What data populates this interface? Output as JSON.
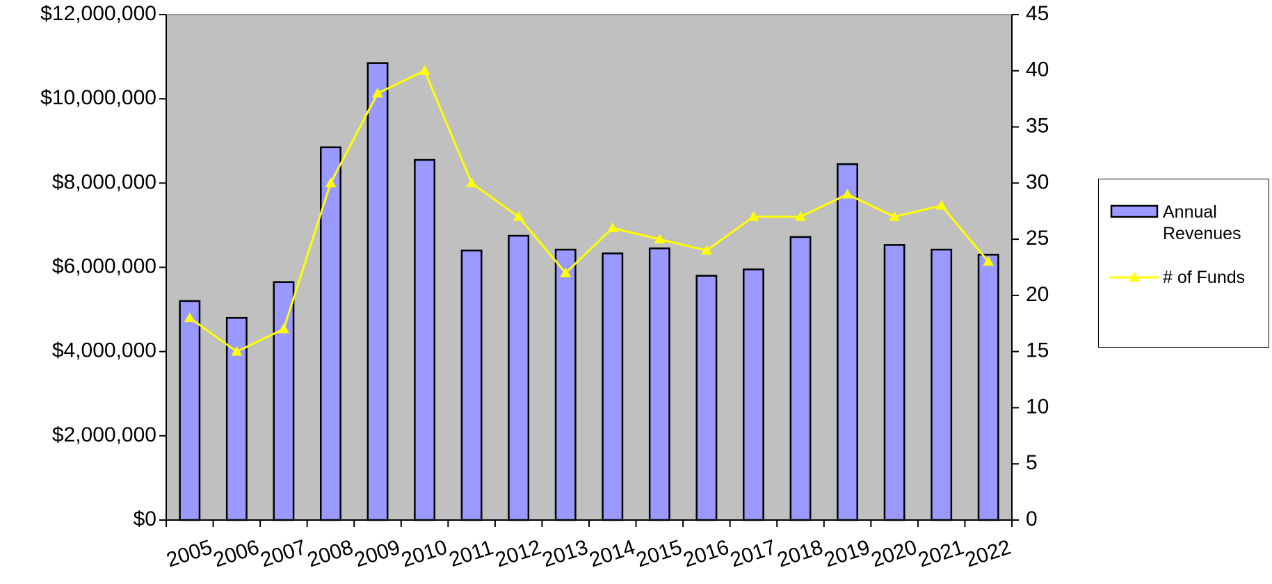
{
  "chart_data": {
    "type": "bar-line",
    "categories": [
      "2005",
      "2006",
      "2007",
      "2008",
      "2009",
      "2010",
      "2011",
      "2012",
      "2013",
      "2014",
      "2015",
      "2016",
      "2017",
      "2018",
      "2019",
      "2020",
      "2021",
      "2022"
    ],
    "series": [
      {
        "name": "Annual Revenues",
        "type": "bar",
        "color": "#9999ff",
        "values": [
          5200000,
          4800000,
          5650000,
          8850000,
          10850000,
          8550000,
          6400000,
          6750000,
          6420000,
          6330000,
          6450000,
          5800000,
          5950000,
          6720000,
          8450000,
          6530000,
          6420000,
          6300000
        ]
      },
      {
        "name": "# of Funds",
        "type": "line",
        "axis": "y2",
        "color": "#ffff00",
        "values": [
          18,
          15,
          17,
          30,
          38,
          40,
          30,
          27,
          22,
          26,
          25,
          24,
          27,
          27,
          29,
          27,
          28,
          23
        ]
      }
    ],
    "ylim": [
      0,
      12000000
    ],
    "yticks": [
      {
        "value": 0,
        "label": "$0"
      },
      {
        "value": 2000000,
        "label": "$2,000,000"
      },
      {
        "value": 4000000,
        "label": "$4,000,000"
      },
      {
        "value": 6000000,
        "label": "$6,000,000"
      },
      {
        "value": 8000000,
        "label": "$8,000,000"
      },
      {
        "value": 10000000,
        "label": "$10,000,000"
      },
      {
        "value": 12000000,
        "label": "$12,000,000"
      }
    ],
    "y2lim": [
      0,
      45
    ],
    "y2ticks": [
      0,
      5,
      10,
      15,
      20,
      25,
      30,
      35,
      40,
      45
    ],
    "legend": "right"
  }
}
